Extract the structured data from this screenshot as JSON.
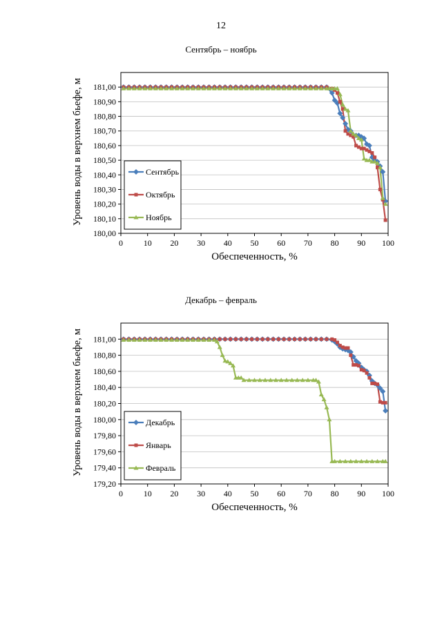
{
  "page": {
    "number": "12"
  },
  "chart_data": [
    {
      "type": "line",
      "title": "Сентябрь – ноябрь",
      "xlabel": "Обеспеченность, %",
      "ylabel": "Уровень воды в верхнем бьефе, м",
      "xlim": [
        0,
        100
      ],
      "ylim": [
        180.0,
        181.1
      ],
      "xticks": [
        0,
        10,
        20,
        30,
        40,
        50,
        60,
        70,
        80,
        90,
        100
      ],
      "xtick_labels": [
        "0",
        "10",
        "20",
        "30",
        "40",
        "50",
        "60",
        "70",
        "80",
        "90",
        "100"
      ],
      "yticks": [
        180.0,
        180.1,
        180.2,
        180.3,
        180.4,
        180.5,
        180.6,
        180.7,
        180.8,
        180.9,
        181.0
      ],
      "ytick_labels": [
        "180,00",
        "180,10",
        "180,20",
        "180,30",
        "180,40",
        "180,50",
        "180,60",
        "180,70",
        "180,80",
        "180,90",
        "181,00"
      ],
      "grid": true,
      "legend": "left",
      "series": [
        {
          "name": "Сентябрь",
          "color": "#4a7ebb",
          "marker": "diamond",
          "x": [
            1,
            3,
            5,
            7,
            9,
            11,
            13,
            15,
            17,
            19,
            21,
            23,
            25,
            27,
            29,
            31,
            33,
            35,
            37,
            39,
            41,
            43,
            45,
            47,
            49,
            51,
            53,
            55,
            57,
            59,
            61,
            63,
            65,
            67,
            69,
            71,
            73,
            75,
            77,
            79,
            80,
            81,
            82,
            83,
            84,
            85,
            86,
            87,
            88,
            89,
            90,
            91,
            92,
            93,
            94,
            95,
            96,
            97,
            98,
            99
          ],
          "y": [
            181.0,
            181.0,
            181.0,
            181.0,
            181.0,
            181.0,
            181.0,
            181.0,
            181.0,
            181.0,
            181.0,
            181.0,
            181.0,
            181.0,
            181.0,
            181.0,
            181.0,
            181.0,
            181.0,
            181.0,
            181.0,
            181.0,
            181.0,
            181.0,
            181.0,
            181.0,
            181.0,
            181.0,
            181.0,
            181.0,
            181.0,
            181.0,
            181.0,
            181.0,
            181.0,
            181.0,
            181.0,
            181.0,
            181.0,
            180.96,
            180.91,
            180.89,
            180.82,
            180.79,
            180.75,
            180.71,
            180.7,
            180.67,
            180.67,
            180.67,
            180.66,
            180.65,
            180.61,
            180.6,
            180.52,
            180.5,
            180.49,
            180.46,
            180.42,
            180.22
          ]
        },
        {
          "name": "Октябрь",
          "color": "#be4b48",
          "marker": "square",
          "x": [
            1,
            3,
            5,
            7,
            9,
            11,
            13,
            15,
            17,
            19,
            21,
            23,
            25,
            27,
            29,
            31,
            33,
            35,
            37,
            39,
            41,
            43,
            45,
            47,
            49,
            51,
            53,
            55,
            57,
            59,
            61,
            63,
            65,
            67,
            69,
            71,
            73,
            75,
            77,
            79,
            80,
            81,
            82,
            83,
            84,
            85,
            86,
            87,
            88,
            89,
            90,
            91,
            92,
            93,
            94,
            95,
            96,
            97,
            98,
            99
          ],
          "y": [
            181.0,
            181.0,
            181.0,
            181.0,
            181.0,
            181.0,
            181.0,
            181.0,
            181.0,
            181.0,
            181.0,
            181.0,
            181.0,
            181.0,
            181.0,
            181.0,
            181.0,
            181.0,
            181.0,
            181.0,
            181.0,
            181.0,
            181.0,
            181.0,
            181.0,
            181.0,
            181.0,
            181.0,
            181.0,
            181.0,
            181.0,
            181.0,
            181.0,
            181.0,
            181.0,
            181.0,
            181.0,
            181.0,
            181.0,
            180.99,
            180.98,
            180.96,
            180.9,
            180.85,
            180.7,
            180.68,
            180.67,
            180.66,
            180.6,
            180.59,
            180.58,
            180.58,
            180.57,
            180.56,
            180.55,
            180.52,
            180.45,
            180.3,
            180.23,
            180.09
          ]
        },
        {
          "name": "Ноябрь",
          "color": "#98b954",
          "marker": "triangle",
          "x": [
            1,
            3,
            5,
            7,
            9,
            11,
            13,
            15,
            17,
            19,
            21,
            23,
            25,
            27,
            29,
            31,
            33,
            35,
            37,
            39,
            41,
            43,
            45,
            47,
            49,
            51,
            53,
            55,
            57,
            59,
            61,
            63,
            65,
            67,
            69,
            71,
            73,
            75,
            77,
            78,
            79,
            80,
            81,
            82,
            83,
            84,
            85,
            86,
            87,
            88,
            89,
            90,
            91,
            92,
            93,
            94,
            95,
            96,
            97,
            98,
            99
          ],
          "y": [
            180.99,
            180.99,
            180.99,
            180.99,
            180.99,
            180.99,
            180.99,
            180.99,
            180.99,
            180.99,
            180.99,
            180.99,
            180.99,
            180.99,
            180.99,
            180.99,
            180.99,
            180.99,
            180.99,
            180.99,
            180.99,
            180.99,
            180.99,
            180.99,
            180.99,
            180.99,
            180.99,
            180.99,
            180.99,
            180.99,
            180.99,
            180.99,
            180.99,
            180.99,
            180.99,
            180.99,
            180.99,
            180.99,
            180.99,
            180.99,
            180.99,
            180.99,
            180.99,
            180.95,
            180.88,
            180.85,
            180.84,
            180.7,
            180.68,
            180.67,
            180.65,
            180.64,
            180.51,
            180.5,
            180.5,
            180.49,
            180.49,
            180.48,
            180.45,
            180.24,
            180.2
          ]
        }
      ]
    },
    {
      "type": "line",
      "title": "Декабрь – февраль",
      "xlabel": "Обеспеченность, %",
      "ylabel": "Уровень воды в верхнем бьефе, м",
      "xlim": [
        0,
        100
      ],
      "ylim": [
        179.2,
        181.2
      ],
      "xticks": [
        0,
        10,
        20,
        30,
        40,
        50,
        60,
        70,
        80,
        90,
        100
      ],
      "xtick_labels": [
        "0",
        "10",
        "20",
        "30",
        "40",
        "50",
        "60",
        "70",
        "80",
        "90",
        "100"
      ],
      "yticks": [
        179.2,
        179.4,
        179.6,
        179.8,
        180.0,
        180.2,
        180.4,
        180.6,
        180.8,
        181.0
      ],
      "ytick_labels": [
        "179,20",
        "179,40",
        "179,60",
        "179,80",
        "180,00",
        "180,20",
        "180,40",
        "180,60",
        "180,80",
        "181,00"
      ],
      "grid": true,
      "legend": "bottom-left",
      "series": [
        {
          "name": "Декабрь",
          "color": "#4a7ebb",
          "marker": "diamond",
          "x": [
            1,
            3,
            5,
            7,
            9,
            11,
            13,
            15,
            17,
            19,
            21,
            23,
            25,
            27,
            29,
            31,
            33,
            35,
            37,
            39,
            41,
            43,
            45,
            47,
            49,
            51,
            53,
            55,
            57,
            59,
            61,
            63,
            65,
            67,
            69,
            71,
            73,
            75,
            77,
            79,
            80,
            81,
            82,
            83,
            84,
            85,
            86,
            87,
            88,
            89,
            90,
            91,
            92,
            93,
            94,
            95,
            96,
            97,
            98,
            99
          ],
          "y": [
            181.0,
            181.0,
            181.0,
            181.0,
            181.0,
            181.0,
            181.0,
            181.0,
            181.0,
            181.0,
            181.0,
            181.0,
            181.0,
            181.0,
            181.0,
            181.0,
            181.0,
            181.0,
            181.0,
            181.0,
            181.0,
            181.0,
            181.0,
            181.0,
            181.0,
            181.0,
            181.0,
            181.0,
            181.0,
            181.0,
            181.0,
            181.0,
            181.0,
            181.0,
            181.0,
            181.0,
            181.0,
            181.0,
            181.0,
            180.99,
            180.97,
            180.94,
            180.9,
            180.88,
            180.87,
            180.86,
            180.84,
            180.78,
            180.73,
            180.7,
            180.65,
            180.62,
            180.6,
            180.55,
            180.48,
            180.45,
            180.43,
            180.39,
            180.35,
            180.11
          ]
        },
        {
          "name": "Январь",
          "color": "#be4b48",
          "marker": "square",
          "x": [
            1,
            3,
            5,
            7,
            9,
            11,
            13,
            15,
            17,
            19,
            21,
            23,
            25,
            27,
            29,
            31,
            33,
            35,
            37,
            39,
            41,
            43,
            45,
            47,
            49,
            51,
            53,
            55,
            57,
            59,
            61,
            63,
            65,
            67,
            69,
            71,
            73,
            75,
            77,
            79,
            80,
            81,
            82,
            83,
            84,
            85,
            86,
            87,
            88,
            89,
            90,
            91,
            92,
            93,
            94,
            95,
            96,
            97,
            98,
            99
          ],
          "y": [
            181.0,
            181.0,
            181.0,
            181.0,
            181.0,
            181.0,
            181.0,
            181.0,
            181.0,
            181.0,
            181.0,
            181.0,
            181.0,
            181.0,
            181.0,
            181.0,
            181.0,
            181.0,
            181.0,
            181.0,
            181.0,
            181.0,
            181.0,
            181.0,
            181.0,
            181.0,
            181.0,
            181.0,
            181.0,
            181.0,
            181.0,
            181.0,
            181.0,
            181.0,
            181.0,
            181.0,
            181.0,
            181.0,
            181.0,
            181.0,
            180.99,
            180.96,
            180.92,
            180.9,
            180.89,
            180.89,
            180.8,
            180.68,
            180.68,
            180.67,
            180.62,
            180.61,
            180.58,
            180.52,
            180.45,
            180.45,
            180.44,
            180.22,
            180.21,
            180.21
          ]
        },
        {
          "name": "Февраль",
          "color": "#98b954",
          "marker": "triangle",
          "x": [
            1,
            3,
            5,
            7,
            9,
            11,
            13,
            15,
            17,
            19,
            21,
            23,
            25,
            27,
            29,
            31,
            33,
            35,
            36,
            37,
            38,
            39,
            40,
            41,
            42,
            43,
            44,
            45,
            46,
            48,
            50,
            52,
            54,
            56,
            58,
            60,
            62,
            64,
            66,
            68,
            70,
            72,
            73,
            74,
            75,
            76,
            77,
            78,
            79,
            80,
            82,
            84,
            86,
            88,
            90,
            92,
            94,
            96,
            98,
            99
          ],
          "y": [
            180.99,
            180.99,
            180.99,
            180.99,
            180.99,
            180.99,
            180.99,
            180.99,
            180.99,
            180.99,
            180.99,
            180.99,
            180.99,
            180.99,
            180.99,
            180.99,
            180.99,
            180.99,
            180.97,
            180.9,
            180.8,
            180.73,
            180.72,
            180.7,
            180.67,
            180.52,
            180.52,
            180.52,
            180.49,
            180.49,
            180.49,
            180.49,
            180.49,
            180.49,
            180.49,
            180.49,
            180.49,
            180.49,
            180.49,
            180.49,
            180.49,
            180.49,
            180.49,
            180.47,
            180.31,
            180.25,
            180.15,
            180.0,
            179.48,
            179.48,
            179.48,
            179.48,
            179.48,
            179.48,
            179.48,
            179.48,
            179.48,
            179.48,
            179.48,
            179.48
          ]
        }
      ]
    }
  ]
}
